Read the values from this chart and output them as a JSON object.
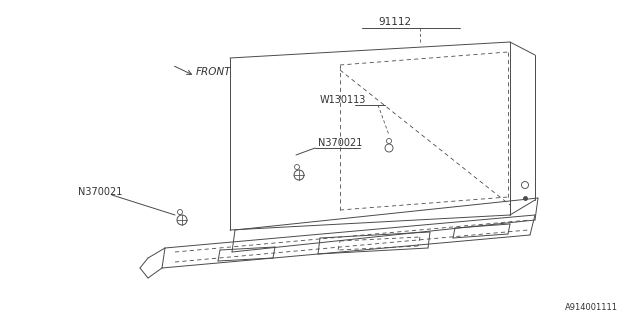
{
  "bg_color": "#ffffff",
  "line_color": "#4a4a4a",
  "text_color": "#333333",
  "fig_width": 6.4,
  "fig_height": 3.2,
  "dpi": 100,
  "part_number_label": "91112",
  "w130113_label": "W130113",
  "n370021_label1": "N370021",
  "n370021_label2": "N370021",
  "front_label": "FRONT",
  "bottom_label": "A914001111",
  "lw": 0.7
}
